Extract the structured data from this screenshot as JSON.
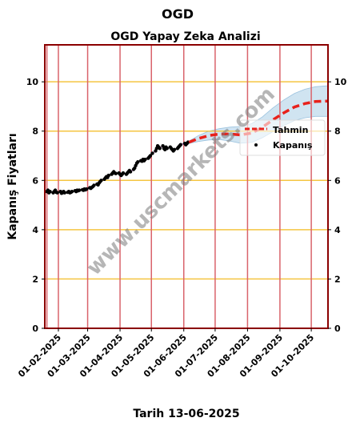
{
  "chart_data": {
    "type": "line",
    "suptitle": "OGD",
    "title": "OGD Yapay Zeka Analizi",
    "xlabel": "Tarih 13-06-2025",
    "ylabel": "Kapanış Fiyatları",
    "ylim": [
      0,
      11.5
    ],
    "yticks": [
      0,
      2,
      4,
      6,
      8,
      10
    ],
    "xlim": [
      "2025-01-19",
      "2025-10-17"
    ],
    "xticks": [
      "2025-02-01",
      "2025-03-01",
      "2025-04-01",
      "2025-05-01",
      "2025-06-01",
      "2025-07-01",
      "2025-08-01",
      "2025-09-01",
      "2025-10-01"
    ],
    "xtick_labels": [
      "01-02-2025",
      "01-03-2025",
      "01-04-2025",
      "01-05-2025",
      "01-06-2025",
      "01-07-2025",
      "01-08-2025",
      "01-09-2025",
      "01-10-2025"
    ],
    "vlines": [
      "2025-01-21",
      "2025-02-01",
      "2025-03-01",
      "2025-04-01",
      "2025-05-01",
      "2025-06-01",
      "2025-07-01",
      "2025-08-01",
      "2025-09-01",
      "2025-10-01"
    ],
    "grid": true,
    "legend_position": "right",
    "legend": [
      "Tahmin",
      "Kapanış"
    ],
    "series": [
      {
        "name": "Kapanış",
        "style": "points",
        "color": "#000000",
        "points": [
          [
            "2025-01-21",
            5.55
          ],
          [
            "2025-01-22",
            5.6
          ],
          [
            "2025-01-23",
            5.5
          ],
          [
            "2025-01-24",
            5.55
          ],
          [
            "2025-01-27",
            5.5
          ],
          [
            "2025-01-28",
            5.55
          ],
          [
            "2025-01-29",
            5.6
          ],
          [
            "2025-01-30",
            5.52
          ],
          [
            "2025-01-31",
            5.5
          ],
          [
            "2025-02-03",
            5.55
          ],
          [
            "2025-02-04",
            5.48
          ],
          [
            "2025-02-05",
            5.5
          ],
          [
            "2025-02-06",
            5.55
          ],
          [
            "2025-02-07",
            5.5
          ],
          [
            "2025-02-10",
            5.52
          ],
          [
            "2025-02-11",
            5.55
          ],
          [
            "2025-02-12",
            5.5
          ],
          [
            "2025-02-13",
            5.52
          ],
          [
            "2025-02-14",
            5.55
          ],
          [
            "2025-02-17",
            5.58
          ],
          [
            "2025-02-18",
            5.55
          ],
          [
            "2025-02-19",
            5.6
          ],
          [
            "2025-02-20",
            5.58
          ],
          [
            "2025-02-21",
            5.6
          ],
          [
            "2025-02-24",
            5.62
          ],
          [
            "2025-02-25",
            5.6
          ],
          [
            "2025-02-26",
            5.65
          ],
          [
            "2025-02-27",
            5.62
          ],
          [
            "2025-02-28",
            5.65
          ],
          [
            "2025-03-03",
            5.7
          ],
          [
            "2025-03-04",
            5.68
          ],
          [
            "2025-03-05",
            5.72
          ],
          [
            "2025-03-06",
            5.75
          ],
          [
            "2025-03-07",
            5.8
          ],
          [
            "2025-03-10",
            5.85
          ],
          [
            "2025-03-11",
            5.82
          ],
          [
            "2025-03-12",
            5.9
          ],
          [
            "2025-03-13",
            5.95
          ],
          [
            "2025-03-14",
            6.0
          ],
          [
            "2025-03-17",
            6.05
          ],
          [
            "2025-03-18",
            6.1
          ],
          [
            "2025-03-19",
            6.15
          ],
          [
            "2025-03-20",
            6.12
          ],
          [
            "2025-03-21",
            6.2
          ],
          [
            "2025-03-24",
            6.25
          ],
          [
            "2025-03-25",
            6.3
          ],
          [
            "2025-03-26",
            6.35
          ],
          [
            "2025-03-27",
            6.3
          ],
          [
            "2025-03-28",
            6.28
          ],
          [
            "2025-03-31",
            6.3
          ],
          [
            "2025-04-01",
            6.25
          ],
          [
            "2025-04-02",
            6.2
          ],
          [
            "2025-04-03",
            6.25
          ],
          [
            "2025-04-04",
            6.3
          ],
          [
            "2025-04-07",
            6.25
          ],
          [
            "2025-04-08",
            6.3
          ],
          [
            "2025-04-09",
            6.35
          ],
          [
            "2025-04-10",
            6.4
          ],
          [
            "2025-04-11",
            6.35
          ],
          [
            "2025-04-14",
            6.45
          ],
          [
            "2025-04-15",
            6.5
          ],
          [
            "2025-04-16",
            6.6
          ],
          [
            "2025-04-17",
            6.7
          ],
          [
            "2025-04-18",
            6.75
          ],
          [
            "2025-04-21",
            6.8
          ],
          [
            "2025-04-22",
            6.78
          ],
          [
            "2025-04-23",
            6.85
          ],
          [
            "2025-04-24",
            6.8
          ],
          [
            "2025-04-25",
            6.85
          ],
          [
            "2025-04-28",
            6.9
          ],
          [
            "2025-04-29",
            6.95
          ],
          [
            "2025-04-30",
            7.0
          ],
          [
            "2025-05-02",
            7.1
          ],
          [
            "2025-05-05",
            7.2
          ],
          [
            "2025-05-06",
            7.3
          ],
          [
            "2025-05-07",
            7.4
          ],
          [
            "2025-05-08",
            7.35
          ],
          [
            "2025-05-09",
            7.3
          ],
          [
            "2025-05-12",
            7.4
          ],
          [
            "2025-05-13",
            7.3
          ],
          [
            "2025-05-14",
            7.25
          ],
          [
            "2025-05-15",
            7.35
          ],
          [
            "2025-05-16",
            7.3
          ],
          [
            "2025-05-19",
            7.35
          ],
          [
            "2025-05-20",
            7.3
          ],
          [
            "2025-05-21",
            7.25
          ],
          [
            "2025-05-22",
            7.2
          ],
          [
            "2025-05-23",
            7.25
          ],
          [
            "2025-05-26",
            7.3
          ],
          [
            "2025-05-27",
            7.35
          ],
          [
            "2025-05-28",
            7.4
          ],
          [
            "2025-05-29",
            7.45
          ],
          [
            "2025-06-02",
            7.5
          ],
          [
            "2025-06-03",
            7.45
          ],
          [
            "2025-06-04",
            7.5
          ],
          [
            "2025-06-05",
            7.55
          ]
        ]
      },
      {
        "name": "Tahmin",
        "style": "dashed",
        "color": "#e8211b",
        "points": [
          [
            "2025-06-06",
            7.55
          ],
          [
            "2025-06-15",
            7.7
          ],
          [
            "2025-06-25",
            7.82
          ],
          [
            "2025-07-05",
            7.88
          ],
          [
            "2025-07-15",
            7.88
          ],
          [
            "2025-07-25",
            7.85
          ],
          [
            "2025-08-05",
            7.92
          ],
          [
            "2025-08-15",
            8.15
          ],
          [
            "2025-08-25",
            8.45
          ],
          [
            "2025-09-05",
            8.75
          ],
          [
            "2025-09-15",
            8.98
          ],
          [
            "2025-09-25",
            9.12
          ],
          [
            "2025-10-05",
            9.2
          ],
          [
            "2025-10-17",
            9.22
          ]
        ],
        "band_width": [
          0.05,
          0.12,
          0.18,
          0.22,
          0.28,
          0.34,
          0.38,
          0.42,
          0.48,
          0.52,
          0.55,
          0.58,
          0.6,
          0.62
        ]
      }
    ],
    "watermark": "www.uscmarkets.com"
  }
}
